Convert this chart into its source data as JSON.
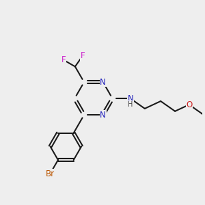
{
  "bg_color": "#eeeeee",
  "bond_color": "#1a1a1a",
  "N_color": "#2222bb",
  "O_color": "#cc2222",
  "F_color": "#cc22cc",
  "Br_color": "#bb5500",
  "H_color": "#444444",
  "line_width": 1.5,
  "font_size": 8.5,
  "figsize": [
    3.0,
    3.0
  ],
  "dpi": 100,
  "xlim": [
    0,
    10
  ],
  "ylim": [
    0,
    10
  ]
}
